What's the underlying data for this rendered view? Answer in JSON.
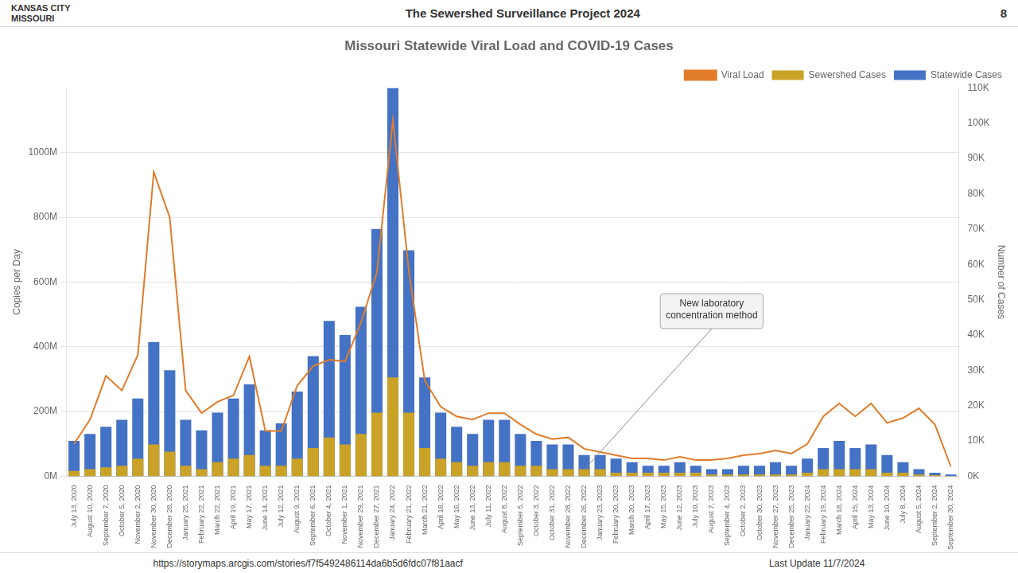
{
  "chart_data": {
    "type": "bar",
    "title": "Missouri Statewide Viral Load and COVID-19 Cases",
    "header": "The Sewershed Surveillance Project 2024",
    "page_number": "8",
    "logo": "KANSAS CITY\nMISSOURI",
    "footer": [
      "https://storymaps.arcgis.com/stories/f7f5492486114da6b5d6fdc07f81aacf",
      "Last Update 11/7/2024"
    ],
    "ylabel": "Copies per Day",
    "y2label": "Number of Cases",
    "categories": [
      "July 13, 2020",
      "August 10, 2020",
      "September 7, 2020",
      "October 5, 2020",
      "November 2, 2020",
      "November 30, 2020",
      "December 28, 2020",
      "January 25, 2021",
      "February 22, 2021",
      "March 22, 2021",
      "April 19, 2021",
      "May 17, 2021",
      "June 14, 2021",
      "July 12, 2021",
      "August 9, 2021",
      "September 6, 2021",
      "October 4, 2021",
      "November 1, 2021",
      "November 29, 2021",
      "December 27, 2021",
      "January 24, 2022",
      "February 21, 2022",
      "March 21, 2022",
      "April 18, 2022",
      "May 16, 2022",
      "June 13, 2022",
      "July 11, 2022",
      "August 8, 2022",
      "September 5, 2022",
      "October 3, 2022",
      "October 31, 2022",
      "November 28, 2022",
      "December 26, 2022",
      "January 23, 2023",
      "February 20, 2023",
      "March 20, 2023",
      "April 17, 2023",
      "May 15, 2023",
      "June 12, 2023",
      "July 10, 2023",
      "August 7, 2023",
      "September 4, 2023",
      "October 2, 2023",
      "October 30, 2023",
      "November 27, 2023",
      "December 25, 2023",
      "January 22, 2024",
      "February 19, 2024",
      "March 18, 2024",
      "April 15, 2024",
      "May 13, 2024",
      "June 10, 2024",
      "July 8, 2024",
      "August 5, 2024",
      "September 2, 2024",
      "September 30, 2024"
    ],
    "series": [
      {
        "name": "Statewide Cases",
        "type": "bar",
        "axis": "y2",
        "color": "#4472c4",
        "values": [
          10,
          12,
          14,
          16,
          22,
          38,
          30,
          16,
          13,
          18,
          22,
          26,
          13,
          15,
          24,
          34,
          44,
          40,
          48,
          70,
          110,
          64,
          28,
          18,
          14,
          12,
          16,
          16,
          12,
          10,
          9,
          9,
          6,
          6,
          5,
          4,
          3,
          3,
          4,
          3,
          2,
          2,
          3,
          3,
          4,
          3,
          5,
          8,
          10,
          8,
          9,
          6,
          4,
          2,
          1,
          0.5
        ]
      },
      {
        "name": "Sewershed Cases",
        "type": "bar",
        "axis": "y2",
        "color": "#c9a227",
        "values": [
          1.5,
          2,
          2.5,
          3,
          5,
          9,
          7,
          3,
          2,
          4,
          5,
          6,
          3,
          3,
          5,
          8,
          11,
          9,
          12,
          18,
          28,
          18,
          8,
          5,
          4,
          3,
          4,
          4,
          3,
          3,
          2,
          2,
          2,
          2,
          1,
          1,
          1,
          1,
          1,
          1,
          0.5,
          0.5,
          0.5,
          0.5,
          0.5,
          0.5,
          1,
          2,
          2,
          2,
          2,
          1,
          1,
          0.5,
          0.3,
          0.1
        ]
      },
      {
        "name": "Viral Load",
        "type": "line",
        "axis": "y",
        "color": "#e07c2a",
        "values": [
          100,
          175,
          310,
          265,
          375,
          940,
          800,
          265,
          195,
          230,
          250,
          370,
          140,
          140,
          280,
          340,
          360,
          355,
          475,
          630,
          1100,
          635,
          295,
          215,
          185,
          175,
          195,
          195,
          160,
          130,
          115,
          120,
          85,
          75,
          65,
          55,
          55,
          50,
          60,
          50,
          50,
          55,
          65,
          70,
          80,
          70,
          100,
          185,
          225,
          185,
          225,
          165,
          180,
          210,
          160,
          30
        ]
      }
    ],
    "ylim": [
      0,
      1200
    ],
    "yticks": [
      {
        "value": 0,
        "label": "0M"
      },
      {
        "value": 200,
        "label": "200M"
      },
      {
        "value": 400,
        "label": "400M"
      },
      {
        "value": 600,
        "label": "600M"
      },
      {
        "value": 800,
        "label": "800M"
      },
      {
        "value": 1000,
        "label": "1000M"
      }
    ],
    "y2lim": [
      0,
      110
    ],
    "y2ticks": [
      {
        "value": 0,
        "label": "0K"
      },
      {
        "value": 10,
        "label": "10K"
      },
      {
        "value": 20,
        "label": "20K"
      },
      {
        "value": 30,
        "label": "30K"
      },
      {
        "value": 40,
        "label": "40K"
      },
      {
        "value": 50,
        "label": "50K"
      },
      {
        "value": 60,
        "label": "60K"
      },
      {
        "value": 70,
        "label": "70K"
      },
      {
        "value": 80,
        "label": "80K"
      },
      {
        "value": 90,
        "label": "90K"
      },
      {
        "value": 100,
        "label": "100K"
      },
      {
        "value": 110,
        "label": "110K"
      }
    ],
    "grid": true,
    "legend": "upper right",
    "annotations": [
      {
        "text": "New laboratory\nconcentration method",
        "x": "December 26, 2022",
        "y": 20
      }
    ]
  }
}
